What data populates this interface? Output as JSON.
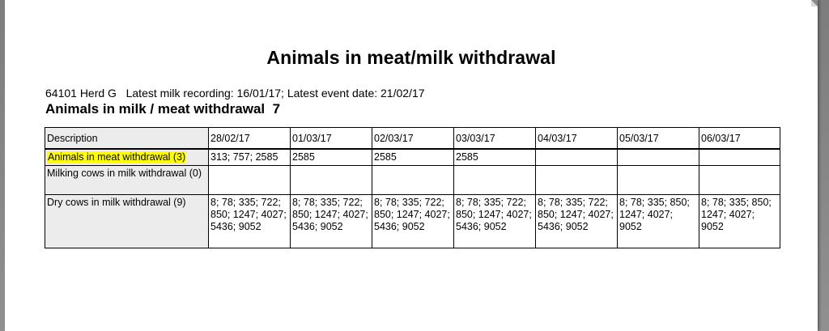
{
  "report": {
    "title": "Animals in meat/milk withdrawal",
    "meta": "64101 Herd G   Latest milk recording: 16/01/17; Latest event date: 21/02/17",
    "subtitle": "Animals in milk / meat withdrawal  7"
  },
  "table": {
    "header": {
      "description": "Description",
      "dates": [
        "28/02/17",
        "01/03/17",
        "02/03/17",
        "03/03/17",
        "04/03/17",
        "05/03/17",
        "06/03/17"
      ]
    },
    "rows": [
      {
        "description": "Animals in meat withdrawal (3)",
        "highlighted": true,
        "cells": [
          "313; 757; 2585",
          "2585",
          "2585",
          "2585",
          "",
          "",
          ""
        ]
      },
      {
        "description": "Milking cows in milk withdrawal (0)",
        "highlighted": false,
        "cells": [
          "",
          "",
          "",
          "",
          "",
          "",
          ""
        ]
      },
      {
        "description": "Dry cows in milk withdrawal (9)",
        "highlighted": false,
        "cells": [
          "8; 78; 335; 722; 850; 1247; 4027; 5436; 9052",
          "8; 78; 335; 722; 850; 1247; 4027; 5436; 9052",
          "8; 78; 335; 722; 850; 1247; 4027; 5436; 9052",
          "8; 78; 335; 722; 850; 1247; 4027; 5436; 9052",
          "8; 78; 335; 722; 850; 1247; 4027; 5436; 9052",
          "8; 78; 335; 850; 1247; 4027; 9052",
          "8; 78; 335; 850; 1247; 4027; 9052"
        ]
      }
    ]
  },
  "colors": {
    "highlight": "#ffff00",
    "description_column_bg": "#ececec",
    "viewer_bg": "#8a8a8a"
  }
}
